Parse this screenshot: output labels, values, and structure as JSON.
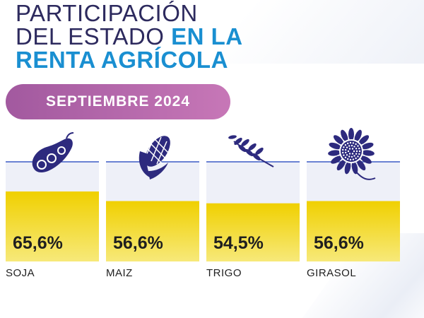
{
  "header": {
    "title_line1": "PARTICIPACIÓN",
    "title_line2_light": "DEL ESTADO",
    "title_line2_accent": "EN LA",
    "title_line3_accent": "RENTA AGRÍCOLA"
  },
  "period": "SEPTIEMBRE 2024",
  "colors": {
    "title": "#2d2a5e",
    "accent": "#1a8fd1",
    "pill": "#b567ab",
    "bar": "#f2d400",
    "column_bg": "#eef0f8",
    "icon": "#2d2a7e"
  },
  "chart_data": {
    "type": "bar",
    "categories": [
      "SOJA",
      "MAIZ",
      "TRIGO",
      "GIRASOL"
    ],
    "values": [
      65.6,
      56.6,
      54.5,
      56.6
    ],
    "value_labels": [
      "65,6%",
      "56,6%",
      "54,5%",
      "56,6%"
    ],
    "icons": [
      "soybean-pod-icon",
      "corn-cob-icon",
      "wheat-icon",
      "sunflower-icon"
    ],
    "ylim": [
      0,
      100
    ],
    "grid": false,
    "legend": "none"
  }
}
